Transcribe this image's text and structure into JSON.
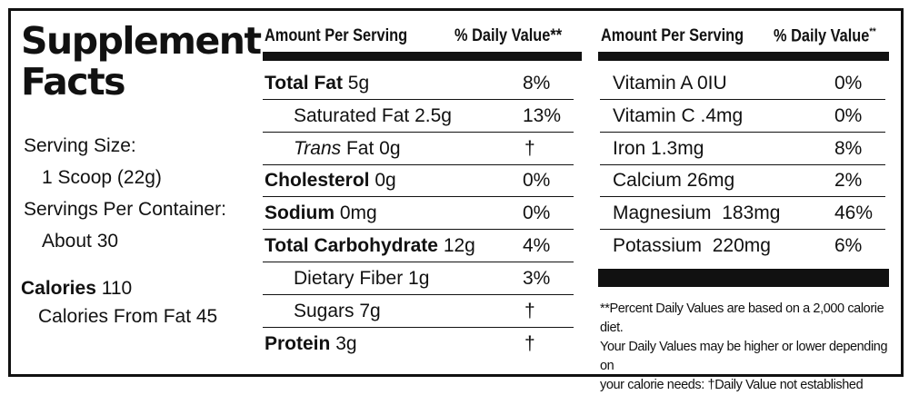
{
  "panel": {
    "title_line1": "Supplement",
    "title_line2": "Facts",
    "serving_size_label": "Serving Size:",
    "serving_size_value": "1 Scoop (22g)",
    "servings_label": "Servings Per Container:",
    "servings_value": "About 30",
    "calories_label": "Calories",
    "calories_value": "110",
    "calories_fat": "Calories From Fat 45"
  },
  "middle": {
    "header_amount": "Amount Per Serving",
    "header_dv": "% Daily Value**",
    "rows": [
      {
        "name": "Total Fat",
        "amount": "5g",
        "dv": "8%"
      },
      {
        "name": "Saturated Fat 2.5g",
        "amount": "",
        "dv": "13%"
      },
      {
        "name": "Trans",
        "amount": "Fat 0g",
        "dv": "†"
      },
      {
        "name": "Cholesterol",
        "amount": "0g",
        "dv": "0%"
      },
      {
        "name": "Sodium",
        "amount": "0mg",
        "dv": "0%"
      },
      {
        "name": "Total Carbohydrate",
        "amount": "12g",
        "dv": "4%"
      },
      {
        "name": "Dietary Fiber 1g",
        "amount": "",
        "dv": "3%"
      },
      {
        "name": "Sugars 7g",
        "amount": "",
        "dv": "†"
      },
      {
        "name": "Protein",
        "amount": "3g",
        "dv": "†"
      }
    ]
  },
  "right": {
    "header_amount": "Amount Per Serving",
    "header_dv": "% Daily Value",
    "header_dv_mark": "**",
    "rows": [
      {
        "name": "Vitamin A 0IU",
        "dv": "0%"
      },
      {
        "name": "Vitamin C .4mg",
        "dv": "0%"
      },
      {
        "name": "Iron 1.3mg",
        "dv": "8%"
      },
      {
        "name": "Calcium 26mg",
        "dv": "2%"
      },
      {
        "name": "Magnesium  183mg",
        "dv": "46%"
      },
      {
        "name": "Potassium  220mg",
        "dv": "6%"
      }
    ],
    "footnote_line1": "**Percent Daily Values are based on a 2,000 calorie diet.",
    "footnote_line2": "Your Daily Values may be higher or lower depending on",
    "footnote_line3": "your calorie needs:  †Daily Value not established"
  }
}
